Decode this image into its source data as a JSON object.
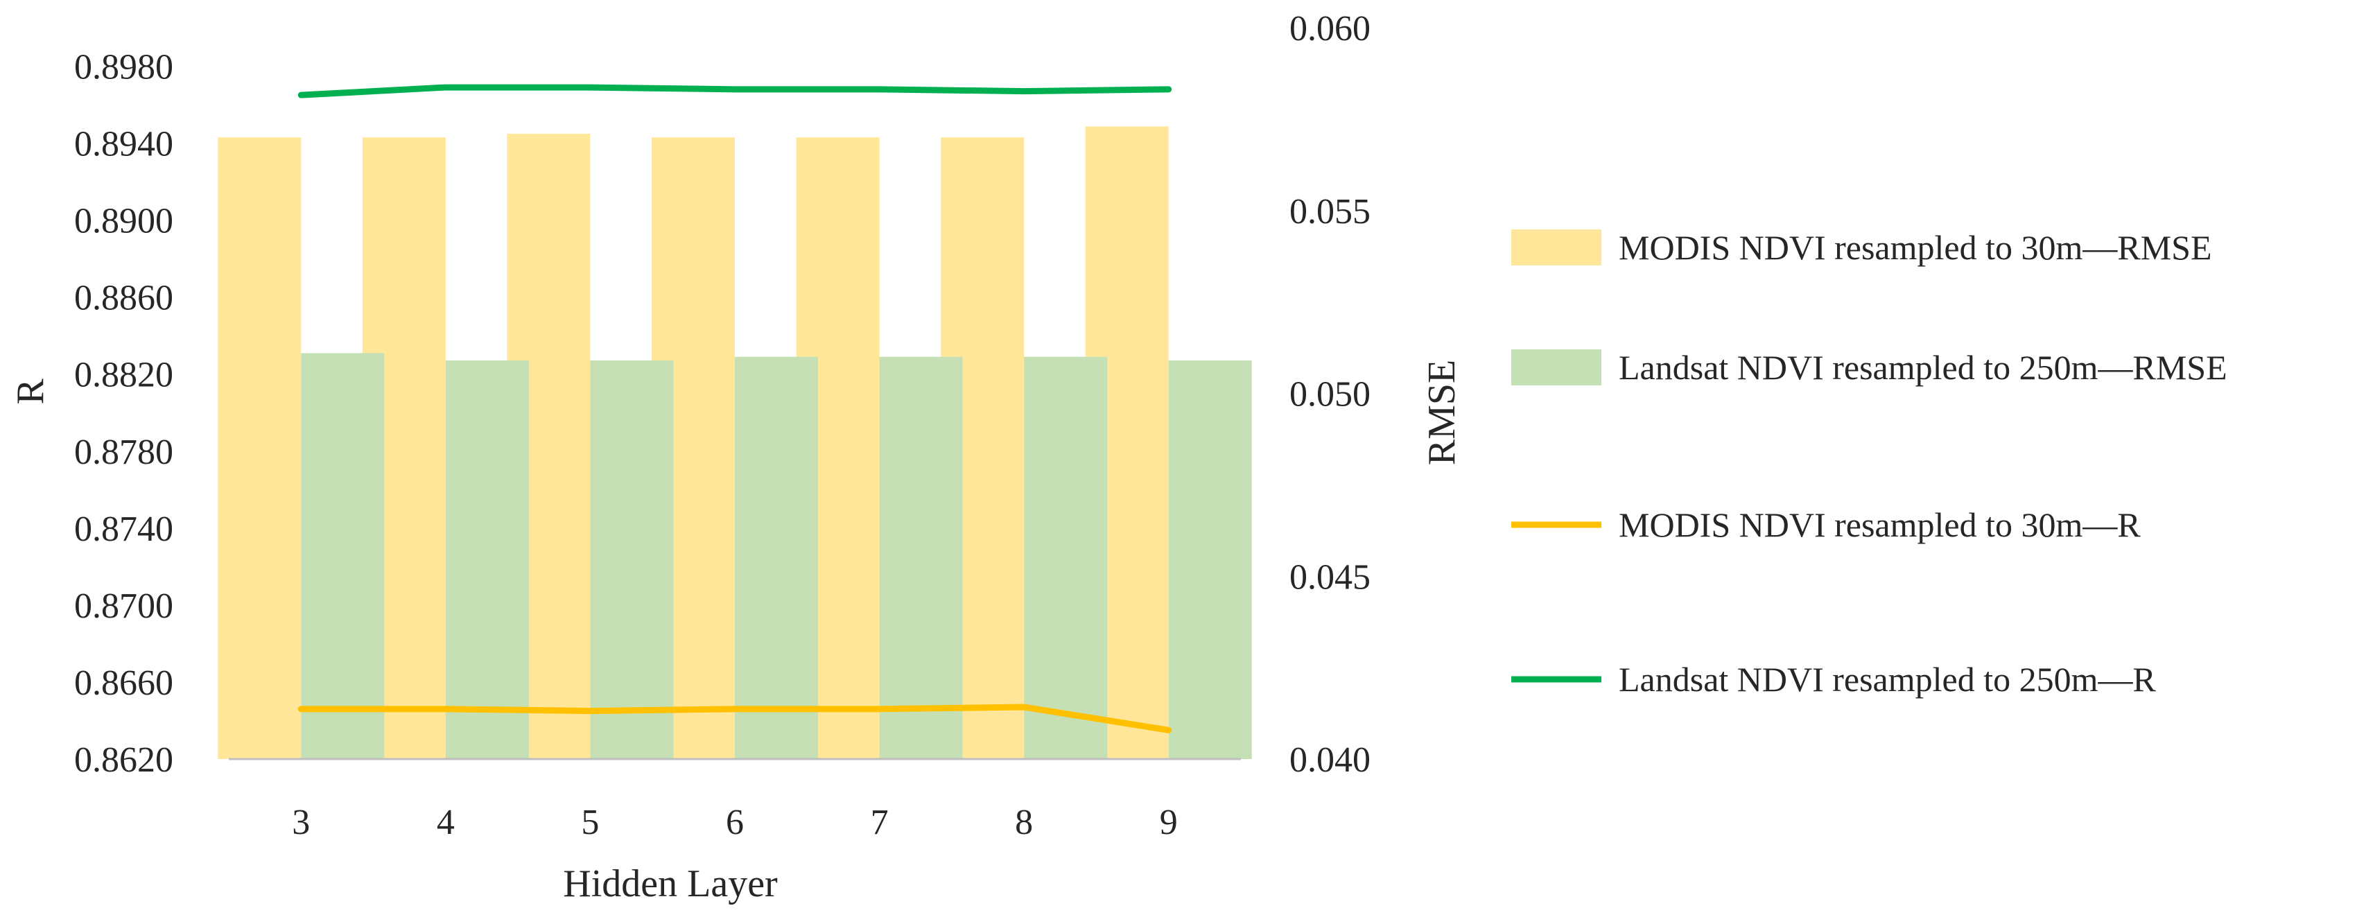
{
  "chart_data": {
    "type": "bar",
    "xlabel": "Hidden Layer",
    "ylabel_left": "R",
    "ylabel_right": "RMSE",
    "categories": [
      "3",
      "4",
      "5",
      "6",
      "7",
      "8",
      "9"
    ],
    "y_left": {
      "range": [
        0.862,
        0.9
      ],
      "ticks": [
        "0.8620",
        "0.8660",
        "0.8700",
        "0.8740",
        "0.8780",
        "0.8820",
        "0.8860",
        "0.8900",
        "0.8940",
        "0.8980"
      ]
    },
    "y_right": {
      "range": [
        0.04,
        0.06
      ],
      "ticks": [
        "0.040",
        "0.045",
        "0.050",
        "0.055",
        "0.060"
      ]
    },
    "grid": false,
    "legend_position": "right",
    "colors": {
      "modis_rmse": "#ffe699",
      "landsat_rmse": "#c5e0b4",
      "modis_r": "#ffc000",
      "landsat_r": "#00b050",
      "axis": "#bfbfbf"
    },
    "series": [
      {
        "name": "MODIS NDVI resampled to 30m—RMSE",
        "type": "bar",
        "axis": "right",
        "color_key": "modis_rmse",
        "values": [
          0.057,
          0.057,
          0.0571,
          0.057,
          0.057,
          0.057,
          0.0573
        ]
      },
      {
        "name": "Landsat NDVI resampled to 250m—RMSE",
        "type": "bar",
        "axis": "right",
        "color_key": "landsat_rmse",
        "values": [
          0.0511,
          0.0509,
          0.0509,
          0.051,
          0.051,
          0.051,
          0.0509
        ]
      },
      {
        "name": "MODIS NDVI resampled to 30m—R",
        "type": "line",
        "axis": "left",
        "color_key": "modis_r",
        "values": [
          0.8646,
          0.8646,
          0.8645,
          0.8646,
          0.8646,
          0.8647,
          0.8635
        ]
      },
      {
        "name": "Landsat NDVI resampled to 250m—R",
        "type": "line",
        "axis": "left",
        "color_key": "landsat_r",
        "values": [
          0.8965,
          0.8969,
          0.8969,
          0.8968,
          0.8968,
          0.8967,
          0.8968
        ]
      }
    ]
  }
}
